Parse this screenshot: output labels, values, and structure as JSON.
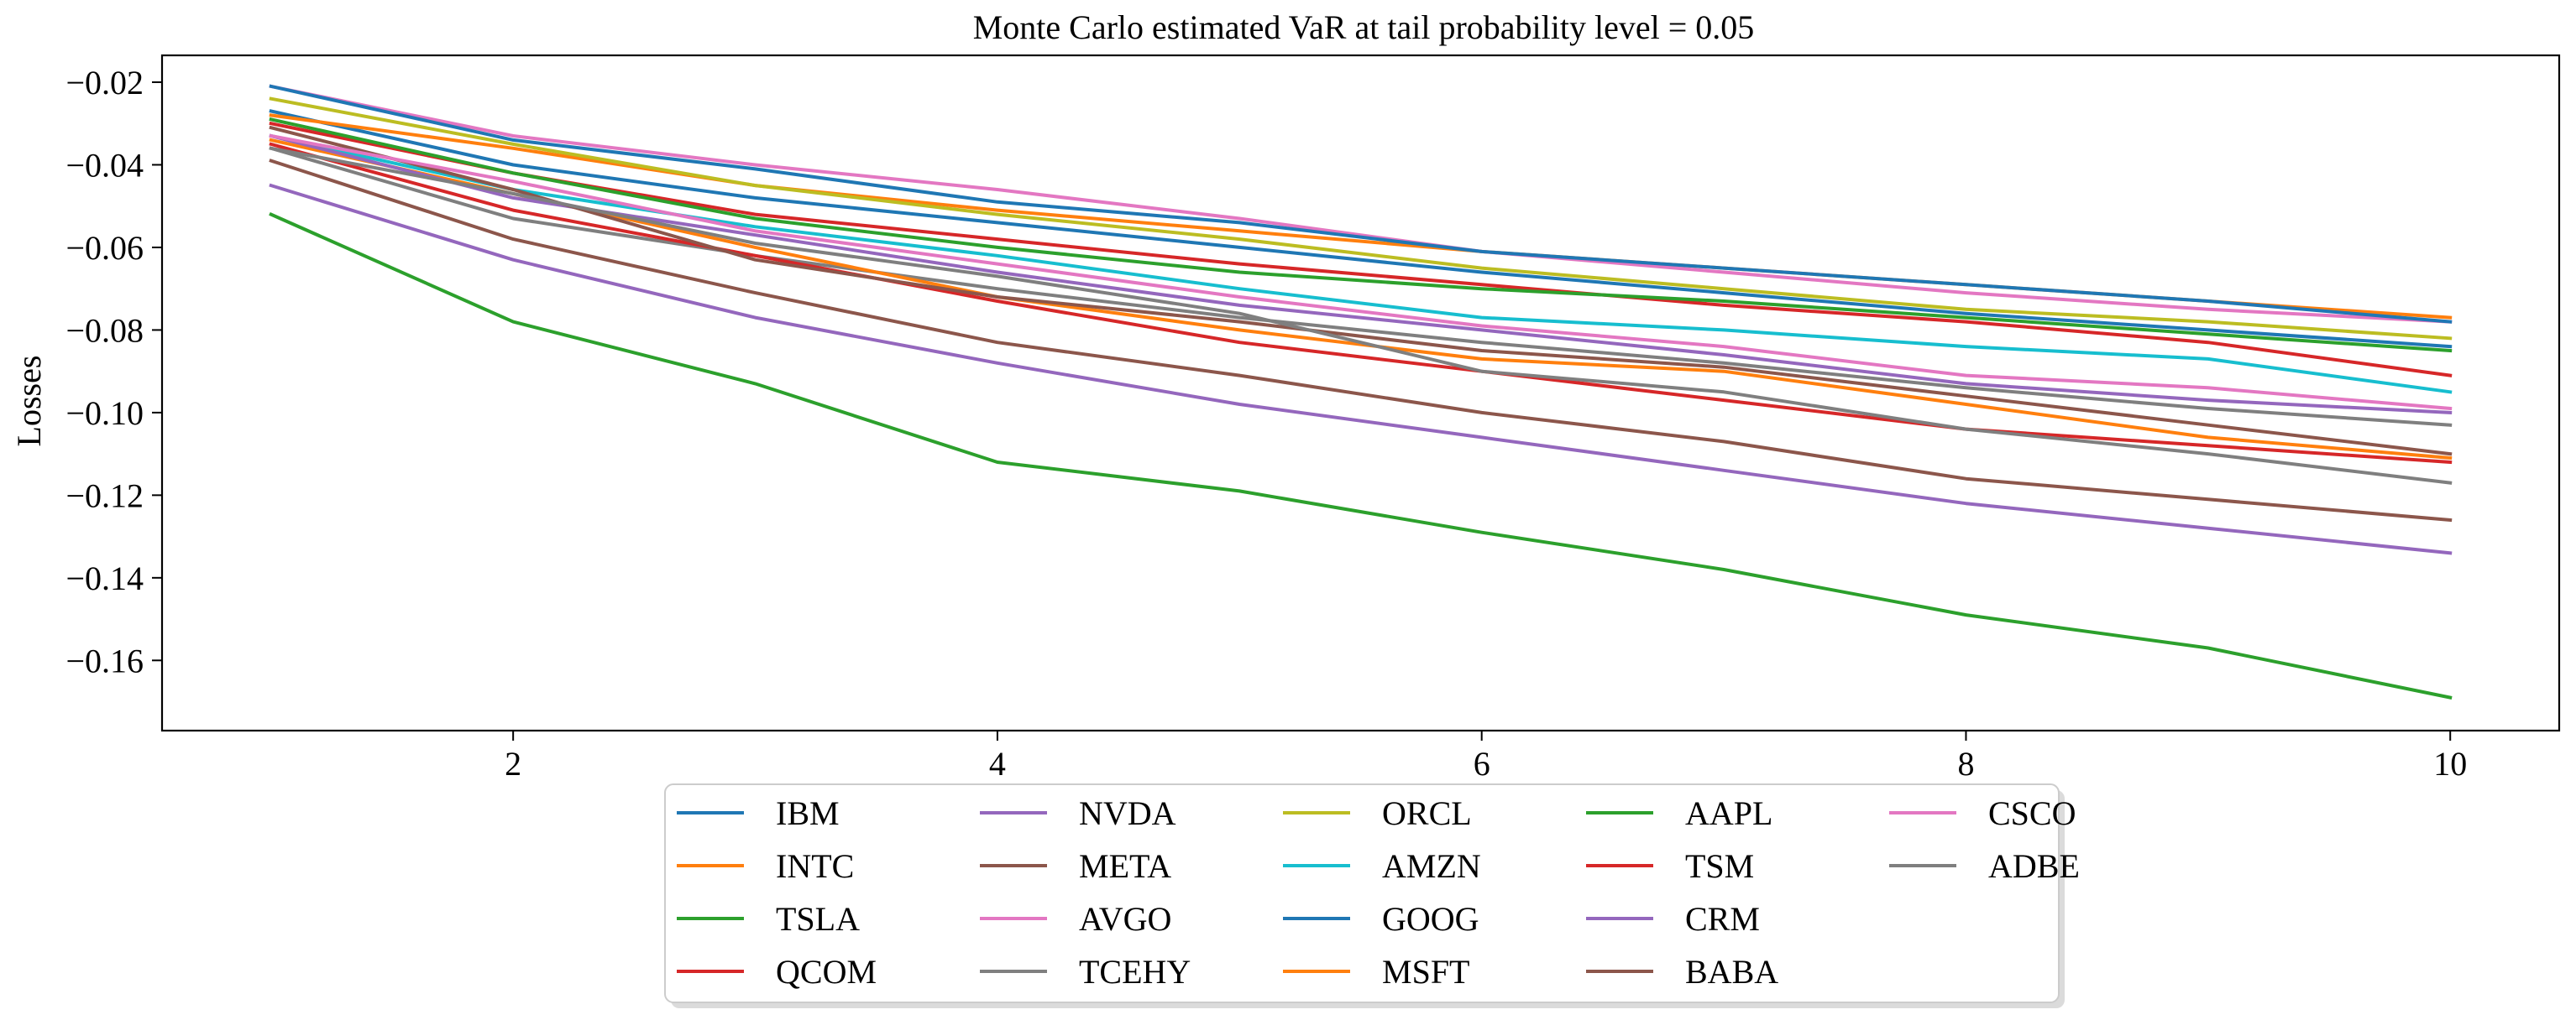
{
  "chart_data": {
    "type": "line",
    "title": "Monte Carlo estimated VaR at tail probability level = 0.05",
    "xlabel": "",
    "ylabel": "Losses",
    "xlim": [
      0.55,
      10.45
    ],
    "ylim": [
      -0.177,
      -0.0135
    ],
    "xticks": [
      2,
      4,
      6,
      8,
      10
    ],
    "yticks": [
      -0.02,
      -0.04,
      -0.06,
      -0.08,
      -0.1,
      -0.12,
      -0.14,
      -0.16
    ],
    "ytick_labels": [
      "−0.02",
      "−0.04",
      "−0.06",
      "−0.08",
      "−0.10",
      "−0.12",
      "−0.14",
      "−0.16"
    ],
    "grid": false,
    "legend_placement": "bottom-center, outside",
    "legend_columns": 5,
    "x": [
      1,
      2,
      3,
      4,
      5,
      6,
      7,
      8,
      9,
      10
    ],
    "series": [
      {
        "name": "IBM",
        "color": "#1f77b4",
        "values": [
          -0.027,
          -0.04,
          -0.048,
          -0.054,
          -0.06,
          -0.066,
          -0.071,
          -0.076,
          -0.08,
          -0.084
        ]
      },
      {
        "name": "INTC",
        "color": "#ff7f0e",
        "values": [
          -0.028,
          -0.036,
          -0.045,
          -0.051,
          -0.056,
          -0.061,
          -0.065,
          -0.069,
          -0.073,
          -0.077
        ]
      },
      {
        "name": "TSLA",
        "color": "#2ca02c",
        "values": [
          -0.052,
          -0.078,
          -0.093,
          -0.112,
          -0.119,
          -0.129,
          -0.138,
          -0.149,
          -0.157,
          -0.169
        ]
      },
      {
        "name": "QCOM",
        "color": "#d62728",
        "values": [
          -0.03,
          -0.042,
          -0.052,
          -0.058,
          -0.064,
          -0.069,
          -0.074,
          -0.078,
          -0.083,
          -0.091
        ]
      },
      {
        "name": "NVDA",
        "color": "#9467bd",
        "values": [
          -0.045,
          -0.063,
          -0.077,
          -0.088,
          -0.098,
          -0.106,
          -0.114,
          -0.122,
          -0.128,
          -0.134
        ]
      },
      {
        "name": "META",
        "color": "#8c564b",
        "values": [
          -0.039,
          -0.058,
          -0.071,
          -0.083,
          -0.091,
          -0.1,
          -0.107,
          -0.116,
          -0.121,
          -0.126
        ]
      },
      {
        "name": "AVGO",
        "color": "#e377c2",
        "values": [
          -0.021,
          -0.033,
          -0.04,
          -0.046,
          -0.053,
          -0.061,
          -0.066,
          -0.071,
          -0.075,
          -0.078
        ]
      },
      {
        "name": "TCEHY",
        "color": "#7f7f7f",
        "values": [
          -0.036,
          -0.053,
          -0.062,
          -0.07,
          -0.077,
          -0.083,
          -0.088,
          -0.094,
          -0.099,
          -0.103
        ]
      },
      {
        "name": "ORCL",
        "color": "#bcbd22",
        "values": [
          -0.024,
          -0.035,
          -0.045,
          -0.052,
          -0.058,
          -0.065,
          -0.07,
          -0.075,
          -0.078,
          -0.082
        ]
      },
      {
        "name": "AMZN",
        "color": "#17becf",
        "values": [
          -0.033,
          -0.046,
          -0.055,
          -0.062,
          -0.07,
          -0.077,
          -0.08,
          -0.084,
          -0.087,
          -0.095
        ]
      },
      {
        "name": "GOOG",
        "color": "#1f77b4",
        "values": [
          -0.021,
          -0.034,
          -0.041,
          -0.049,
          -0.054,
          -0.061,
          -0.065,
          -0.069,
          -0.073,
          -0.078
        ]
      },
      {
        "name": "MSFT",
        "color": "#ff7f0e",
        "values": [
          -0.034,
          -0.047,
          -0.06,
          -0.072,
          -0.08,
          -0.087,
          -0.09,
          -0.098,
          -0.106,
          -0.111
        ]
      },
      {
        "name": "AAPL",
        "color": "#2ca02c",
        "values": [
          -0.029,
          -0.042,
          -0.053,
          -0.06,
          -0.066,
          -0.07,
          -0.073,
          -0.077,
          -0.081,
          -0.085
        ]
      },
      {
        "name": "TSM",
        "color": "#d62728",
        "values": [
          -0.035,
          -0.051,
          -0.062,
          -0.073,
          -0.083,
          -0.09,
          -0.097,
          -0.104,
          -0.108,
          -0.112
        ]
      },
      {
        "name": "CRM",
        "color": "#9467bd",
        "values": [
          -0.033,
          -0.048,
          -0.057,
          -0.066,
          -0.074,
          -0.08,
          -0.086,
          -0.093,
          -0.097,
          -0.1
        ]
      },
      {
        "name": "BABA",
        "color": "#8c564b",
        "values": [
          -0.031,
          -0.046,
          -0.063,
          -0.072,
          -0.078,
          -0.085,
          -0.089,
          -0.096,
          -0.103,
          -0.11
        ]
      },
      {
        "name": "CSCO",
        "color": "#e377c2",
        "values": [
          -0.033,
          -0.044,
          -0.056,
          -0.064,
          -0.072,
          -0.079,
          -0.084,
          -0.091,
          -0.094,
          -0.099
        ]
      },
      {
        "name": "ADBE",
        "color": "#7f7f7f",
        "values": [
          -0.036,
          -0.047,
          -0.059,
          -0.067,
          -0.076,
          -0.09,
          -0.095,
          -0.104,
          -0.11,
          -0.117
        ]
      }
    ]
  }
}
